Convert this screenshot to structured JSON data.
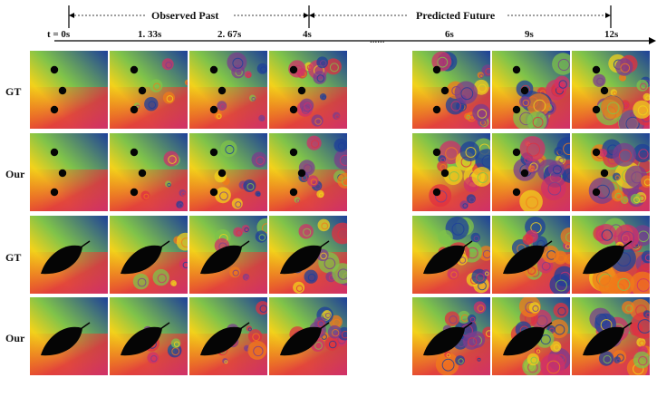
{
  "header": {
    "observed_label": "Observed Past",
    "predicted_label": "Predicted Future",
    "gap_dots": "......",
    "times": [
      "t = 0s",
      "1. 33s",
      "2. 67s",
      "4s",
      "6s",
      "9s",
      "12s"
    ]
  },
  "rows": [
    {
      "label": "GT",
      "obstacle": "cylinders"
    },
    {
      "label": "Our",
      "obstacle": "cylinders"
    },
    {
      "label": "GT",
      "obstacle": "leaf"
    },
    {
      "label": "Our",
      "obstacle": "leaf"
    }
  ],
  "colors": {
    "blue": "#1d3f9a",
    "green": "#7fc34a",
    "yellow": "#f2d21b",
    "orange": "#f07b1a",
    "red": "#e03040",
    "magenta": "#d0306a",
    "purple": "#7a3e8e",
    "obstacle": "#050505"
  }
}
